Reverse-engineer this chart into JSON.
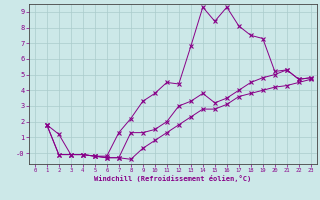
{
  "xlabel": "Windchill (Refroidissement éolien,°C)",
  "bg_color": "#cce8e8",
  "grid_color": "#aacccc",
  "line_color": "#880088",
  "spine_color": "#444444",
  "xlim": [
    -0.5,
    23.5
  ],
  "ylim": [
    -0.7,
    9.5
  ],
  "xticks": [
    0,
    1,
    2,
    3,
    4,
    5,
    6,
    7,
    8,
    9,
    10,
    11,
    12,
    13,
    14,
    15,
    16,
    17,
    18,
    19,
    20,
    21,
    22,
    23
  ],
  "yticks": [
    0,
    1,
    2,
    3,
    4,
    5,
    6,
    7,
    8,
    9
  ],
  "ytick_labels": [
    "-0",
    "1",
    "2",
    "3",
    "4",
    "5",
    "6",
    "7",
    "8",
    "9"
  ],
  "line1_x": [
    1,
    2,
    3,
    4,
    5,
    6,
    7,
    8,
    9,
    10,
    11,
    12,
    13,
    14,
    15,
    16,
    17,
    18,
    19,
    20,
    21,
    22,
    23
  ],
  "line1_y": [
    1.8,
    1.2,
    -0.1,
    -0.1,
    -0.2,
    -0.2,
    1.3,
    2.2,
    3.3,
    3.8,
    4.5,
    4.4,
    6.8,
    9.3,
    8.4,
    9.3,
    8.1,
    7.5,
    7.3,
    5.2,
    5.3,
    4.7,
    4.8
  ],
  "line2_x": [
    1,
    2,
    3,
    4,
    5,
    6,
    7,
    8,
    9,
    10,
    11,
    12,
    13,
    14,
    15,
    16,
    17,
    18,
    19,
    20,
    21,
    22,
    23
  ],
  "line2_y": [
    1.8,
    -0.1,
    -0.1,
    -0.1,
    -0.2,
    -0.3,
    -0.3,
    1.3,
    1.3,
    1.5,
    2.0,
    3.0,
    3.3,
    3.8,
    3.2,
    3.5,
    4.0,
    4.5,
    4.8,
    5.0,
    5.3,
    4.7,
    4.8
  ],
  "line3_x": [
    1,
    2,
    3,
    4,
    5,
    6,
    7,
    8,
    9,
    10,
    11,
    12,
    13,
    14,
    15,
    16,
    17,
    18,
    19,
    20,
    21,
    22,
    23
  ],
  "line3_y": [
    1.8,
    -0.1,
    -0.1,
    -0.1,
    -0.2,
    -0.3,
    -0.3,
    -0.4,
    0.3,
    0.8,
    1.3,
    1.8,
    2.3,
    2.8,
    2.8,
    3.1,
    3.6,
    3.8,
    4.0,
    4.2,
    4.3,
    4.5,
    4.7
  ]
}
